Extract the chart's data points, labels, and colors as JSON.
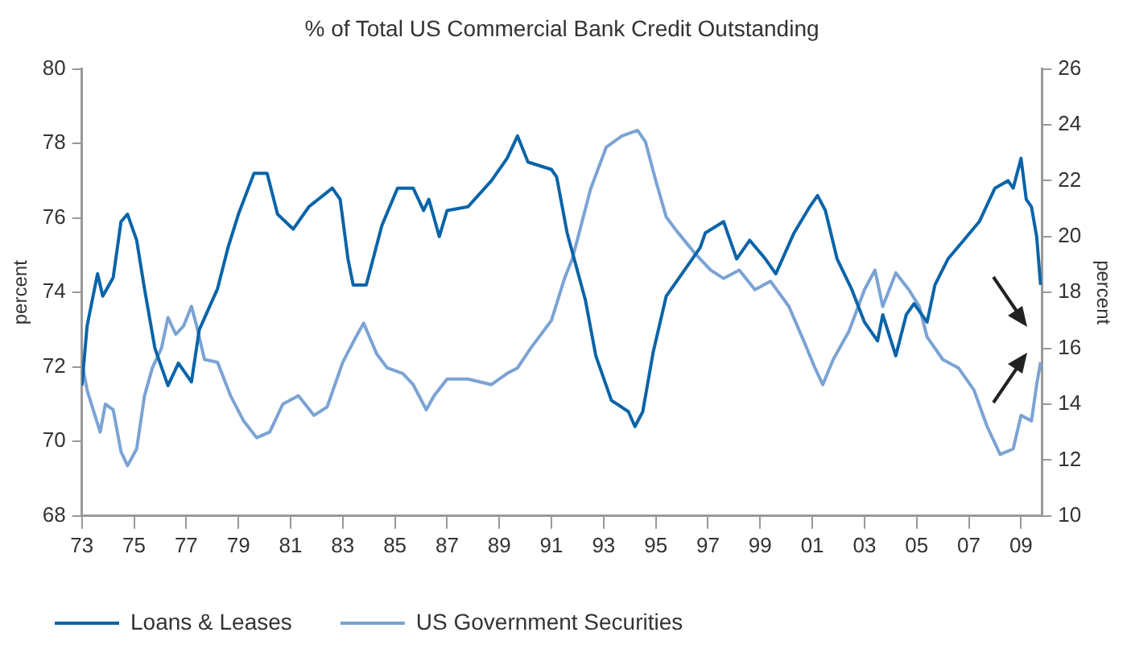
{
  "chart_data": {
    "type": "line",
    "title": "% of Total US Commercial Bank Credit Outstanding",
    "ylabel": "percent",
    "y2label": "percent",
    "xlim": [
      1973,
      2009.8
    ],
    "xticks": [
      {
        "value": 1973,
        "label": "73"
      },
      {
        "value": 1975,
        "label": "75"
      },
      {
        "value": 1977,
        "label": "77"
      },
      {
        "value": 1979,
        "label": "79"
      },
      {
        "value": 1981,
        "label": "81"
      },
      {
        "value": 1983,
        "label": "83"
      },
      {
        "value": 1985,
        "label": "85"
      },
      {
        "value": 1987,
        "label": "87"
      },
      {
        "value": 1989,
        "label": "89"
      },
      {
        "value": 1991,
        "label": "91"
      },
      {
        "value": 1993,
        "label": "93"
      },
      {
        "value": 1995,
        "label": "95"
      },
      {
        "value": 1997,
        "label": "97"
      },
      {
        "value": 1999,
        "label": "99"
      },
      {
        "value": 2001,
        "label": "01"
      },
      {
        "value": 2003,
        "label": "03"
      },
      {
        "value": 2005,
        "label": "05"
      },
      {
        "value": 2007,
        "label": "07"
      },
      {
        "value": 2009,
        "label": "09"
      }
    ],
    "ylim": [
      68,
      80
    ],
    "yticks": [
      68,
      70,
      72,
      74,
      76,
      78,
      80
    ],
    "y2lim": [
      10,
      26
    ],
    "y2ticks": [
      10,
      12,
      14,
      16,
      18,
      20,
      22,
      24,
      26
    ],
    "grid": false,
    "legend": "bottom left",
    "marker": "none",
    "line_style": "solid",
    "series": [
      {
        "name": "Loans & Leases",
        "color": "#0a64a8",
        "axis": "y",
        "x": [
          1973.0,
          1973.2,
          1973.4,
          1973.6,
          1973.8,
          1974.2,
          1974.5,
          1974.75,
          1975.1,
          1975.4,
          1975.8,
          1976.3,
          1976.7,
          1977.2,
          1977.5,
          1978.2,
          1978.6,
          1979.0,
          1979.6,
          1980.1,
          1980.5,
          1981.1,
          1981.7,
          1982.6,
          1982.9,
          1983.2,
          1983.4,
          1983.9,
          1984.5,
          1985.1,
          1985.7,
          1986.1,
          1986.3,
          1986.7,
          1987.0,
          1987.8,
          1988.7,
          1989.3,
          1989.7,
          1990.1,
          1991.0,
          1991.2,
          1991.6,
          1992.3,
          1992.7,
          1993.3,
          1993.95,
          1994.2,
          1994.5,
          1994.9,
          1995.4,
          1996.0,
          1996.7,
          1996.9,
          1997.6,
          1998.1,
          1998.6,
          1999.2,
          1999.6,
          2000.3,
          2000.9,
          2001.2,
          2001.5,
          2001.95,
          2002.5,
          2003.0,
          2003.5,
          2003.7,
          2004.2,
          2004.6,
          2004.9,
          2005.4,
          2005.7,
          2006.2,
          2006.8,
          2007.4,
          2008.0,
          2008.5,
          2008.7,
          2009.0,
          2009.2,
          2009.4,
          2009.6,
          2009.75
        ],
        "values": [
          71.5,
          73.1,
          73.8,
          74.5,
          73.9,
          74.4,
          75.9,
          76.1,
          75.4,
          74.1,
          72.5,
          71.5,
          72.1,
          71.6,
          73.0,
          74.1,
          75.2,
          76.1,
          77.2,
          77.2,
          76.1,
          75.7,
          76.3,
          76.8,
          76.5,
          74.9,
          74.2,
          74.2,
          75.8,
          76.8,
          76.8,
          76.2,
          76.5,
          75.5,
          76.2,
          76.3,
          77.0,
          77.6,
          78.2,
          77.5,
          77.3,
          77.1,
          75.6,
          73.8,
          72.3,
          71.1,
          70.8,
          70.4,
          70.8,
          72.4,
          73.9,
          74.5,
          75.2,
          75.6,
          75.9,
          74.9,
          75.4,
          74.9,
          74.5,
          75.6,
          76.3,
          76.6,
          76.2,
          74.9,
          74.1,
          73.2,
          72.7,
          73.4,
          72.3,
          73.4,
          73.7,
          73.2,
          74.2,
          74.9,
          75.4,
          75.9,
          76.8,
          77.0,
          76.8,
          77.6,
          76.5,
          76.3,
          75.5,
          74.2
        ]
      },
      {
        "name": "US Government Securities",
        "color": "#7ba3d4",
        "axis": "y2",
        "x": [
          1973.0,
          1973.2,
          1973.5,
          1973.7,
          1973.9,
          1974.2,
          1974.5,
          1974.75,
          1975.1,
          1975.4,
          1975.7,
          1976.05,
          1976.3,
          1976.6,
          1976.9,
          1977.2,
          1977.4,
          1977.7,
          1978.2,
          1978.7,
          1979.2,
          1979.7,
          1980.2,
          1980.7,
          1981.3,
          1981.9,
          1982.4,
          1983.0,
          1983.5,
          1983.8,
          1984.3,
          1984.7,
          1985.3,
          1985.7,
          1986.2,
          1986.5,
          1987.0,
          1987.8,
          1988.7,
          1989.3,
          1989.7,
          1990.2,
          1991.0,
          1991.5,
          1991.8,
          1992.5,
          1993.1,
          1993.7,
          1994.3,
          1994.6,
          1995.0,
          1995.4,
          1995.8,
          1996.5,
          1997.1,
          1997.6,
          1998.2,
          1998.8,
          1999.4,
          2000.1,
          2000.7,
          2001.1,
          2001.4,
          2001.8,
          2002.4,
          2003.0,
          2003.4,
          2003.7,
          2004.2,
          2004.7,
          2005.1,
          2005.4,
          2006.0,
          2006.6,
          2007.2,
          2007.7,
          2008.2,
          2008.7,
          2009.0,
          2009.4,
          2009.6,
          2009.75
        ],
        "values": [
          15.5,
          14.5,
          13.6,
          13.0,
          14.0,
          13.8,
          12.3,
          11.8,
          12.4,
          14.3,
          15.3,
          16.0,
          17.1,
          16.5,
          16.8,
          17.5,
          16.8,
          15.6,
          15.5,
          14.3,
          13.4,
          12.8,
          13.0,
          14.0,
          14.3,
          13.6,
          13.9,
          15.5,
          16.4,
          16.9,
          15.8,
          15.3,
          15.1,
          14.7,
          13.8,
          14.3,
          14.9,
          14.9,
          14.7,
          15.1,
          15.3,
          16.0,
          17.0,
          18.5,
          19.2,
          21.7,
          23.2,
          23.6,
          23.8,
          23.4,
          22.0,
          20.7,
          20.2,
          19.4,
          18.8,
          18.5,
          18.8,
          18.1,
          18.4,
          17.5,
          16.2,
          15.3,
          14.7,
          15.6,
          16.6,
          18.1,
          18.8,
          17.5,
          18.7,
          18.1,
          17.5,
          16.4,
          15.6,
          15.3,
          14.5,
          13.2,
          12.2,
          12.4,
          13.6,
          13.4,
          14.7,
          15.5
        ]
      }
    ]
  }
}
